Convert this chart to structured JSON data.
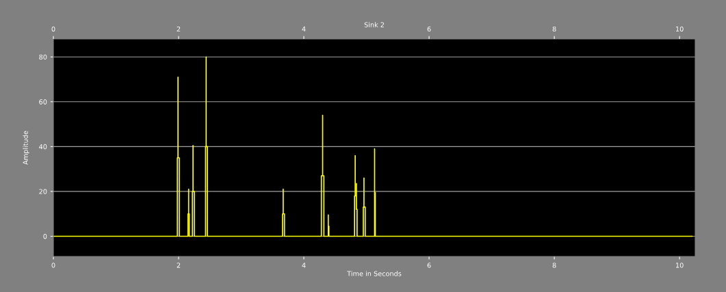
{
  "chart_data": {
    "type": "line",
    "title": "Sink 2",
    "xlabel": "Time in Seconds",
    "ylabel": "Amplitude",
    "x": [
      0,
      1.98,
      1.98,
      1.99,
      1.99,
      1.99,
      2.01,
      2.01,
      2.15,
      2.15,
      2.16,
      2.16,
      2.16,
      2.17,
      2.17,
      2.22,
      2.22,
      2.23,
      2.23,
      2.23,
      2.25,
      2.25,
      2.43,
      2.43,
      2.44,
      2.44,
      2.44,
      2.46,
      2.46,
      3.66,
      3.66,
      3.67,
      3.67,
      3.67,
      3.69,
      3.69,
      4.28,
      4.28,
      4.3,
      4.3,
      4.3,
      4.32,
      4.32,
      4.39,
      4.39,
      4.39,
      4.39,
      4.39,
      4.4,
      4.4,
      4.81,
      4.81,
      4.82,
      4.82,
      4.82,
      4.84,
      4.84,
      4.84,
      4.85,
      4.85,
      4.88,
      4.88,
      4.95,
      4.95,
      4.96,
      4.96,
      4.96,
      4.98,
      4.98,
      5.13,
      5.13,
      5.13,
      5.13,
      5.13,
      5.14,
      5.14,
      10.2
    ],
    "series": [
      {
        "color": "#ffff00",
        "values": [
          0,
          0,
          35,
          35,
          71,
          35,
          35,
          0,
          0,
          10,
          10,
          21,
          10,
          10,
          0,
          0,
          20,
          20,
          40.5,
          20,
          20,
          0,
          0,
          40,
          40,
          80,
          40,
          40,
          0,
          0,
          10,
          10,
          21,
          10,
          10,
          0,
          0,
          27,
          27,
          54,
          27,
          27,
          0,
          0,
          4.5,
          4.5,
          9.5,
          4.5,
          4.5,
          0,
          0,
          18,
          18,
          36,
          18,
          18,
          23.5,
          12,
          12,
          0,
          0,
          0,
          0,
          13,
          13,
          26,
          13,
          13,
          0,
          0,
          19.5,
          19.5,
          39,
          19.5,
          19.5,
          0,
          0
        ]
      }
    ],
    "xlim": [
      0,
      10.25
    ],
    "xticks": [
      0,
      2,
      4,
      6,
      8,
      10
    ],
    "x2lim": [
      0,
      10.25
    ],
    "x2ticks": [
      0,
      2,
      4,
      6,
      8,
      10
    ],
    "ylim": [
      -9,
      88
    ],
    "yticks": [
      0,
      20,
      40,
      60,
      80
    ],
    "grid": "y",
    "legend": false,
    "marker": "none",
    "line_style": "solid"
  }
}
